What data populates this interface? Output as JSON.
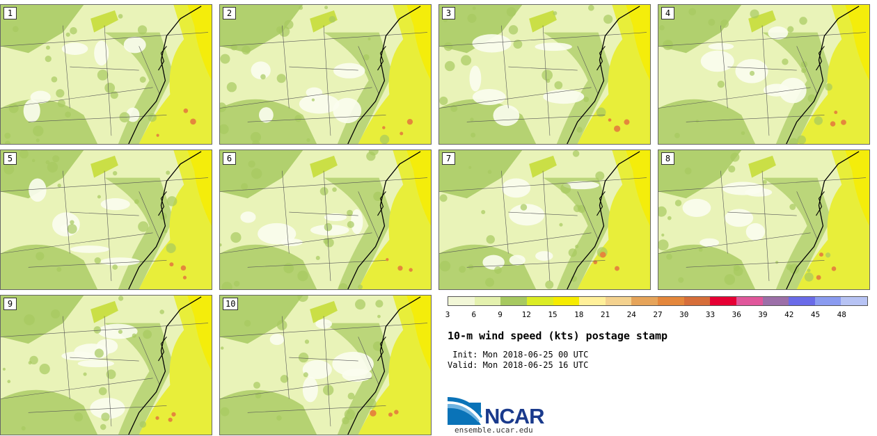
{
  "panels": [
    {
      "label": "1"
    },
    {
      "label": "2"
    },
    {
      "label": "3"
    },
    {
      "label": "4"
    },
    {
      "label": "5"
    },
    {
      "label": "6"
    },
    {
      "label": "7"
    },
    {
      "label": "8"
    },
    {
      "label": "9"
    },
    {
      "label": "10"
    }
  ],
  "colorbar": {
    "colors": [
      "#f2f7d7",
      "#e4f1ae",
      "#a7c960",
      "#dbec25",
      "#f6ec00",
      "#fff09a",
      "#f4d28f",
      "#e6a45a",
      "#e4873c",
      "#d66e3a",
      "#e60034",
      "#e0579b",
      "#9c6fa8",
      "#6a6be8",
      "#8a9bf0",
      "#b7c3f4"
    ],
    "ticks": [
      "3",
      "6",
      "9",
      "12",
      "15",
      "18",
      "21",
      "24",
      "27",
      "30",
      "33",
      "36",
      "39",
      "42",
      "45",
      "48"
    ]
  },
  "title": "10-m wind speed (kts) postage stamp",
  "init": " Init: Mon 2018-06-25 00 UTC",
  "valid": "Valid: Mon 2018-06-25 16 UTC",
  "logo": {
    "text": "NCAR",
    "url": "ensemble.ucar.edu"
  }
}
